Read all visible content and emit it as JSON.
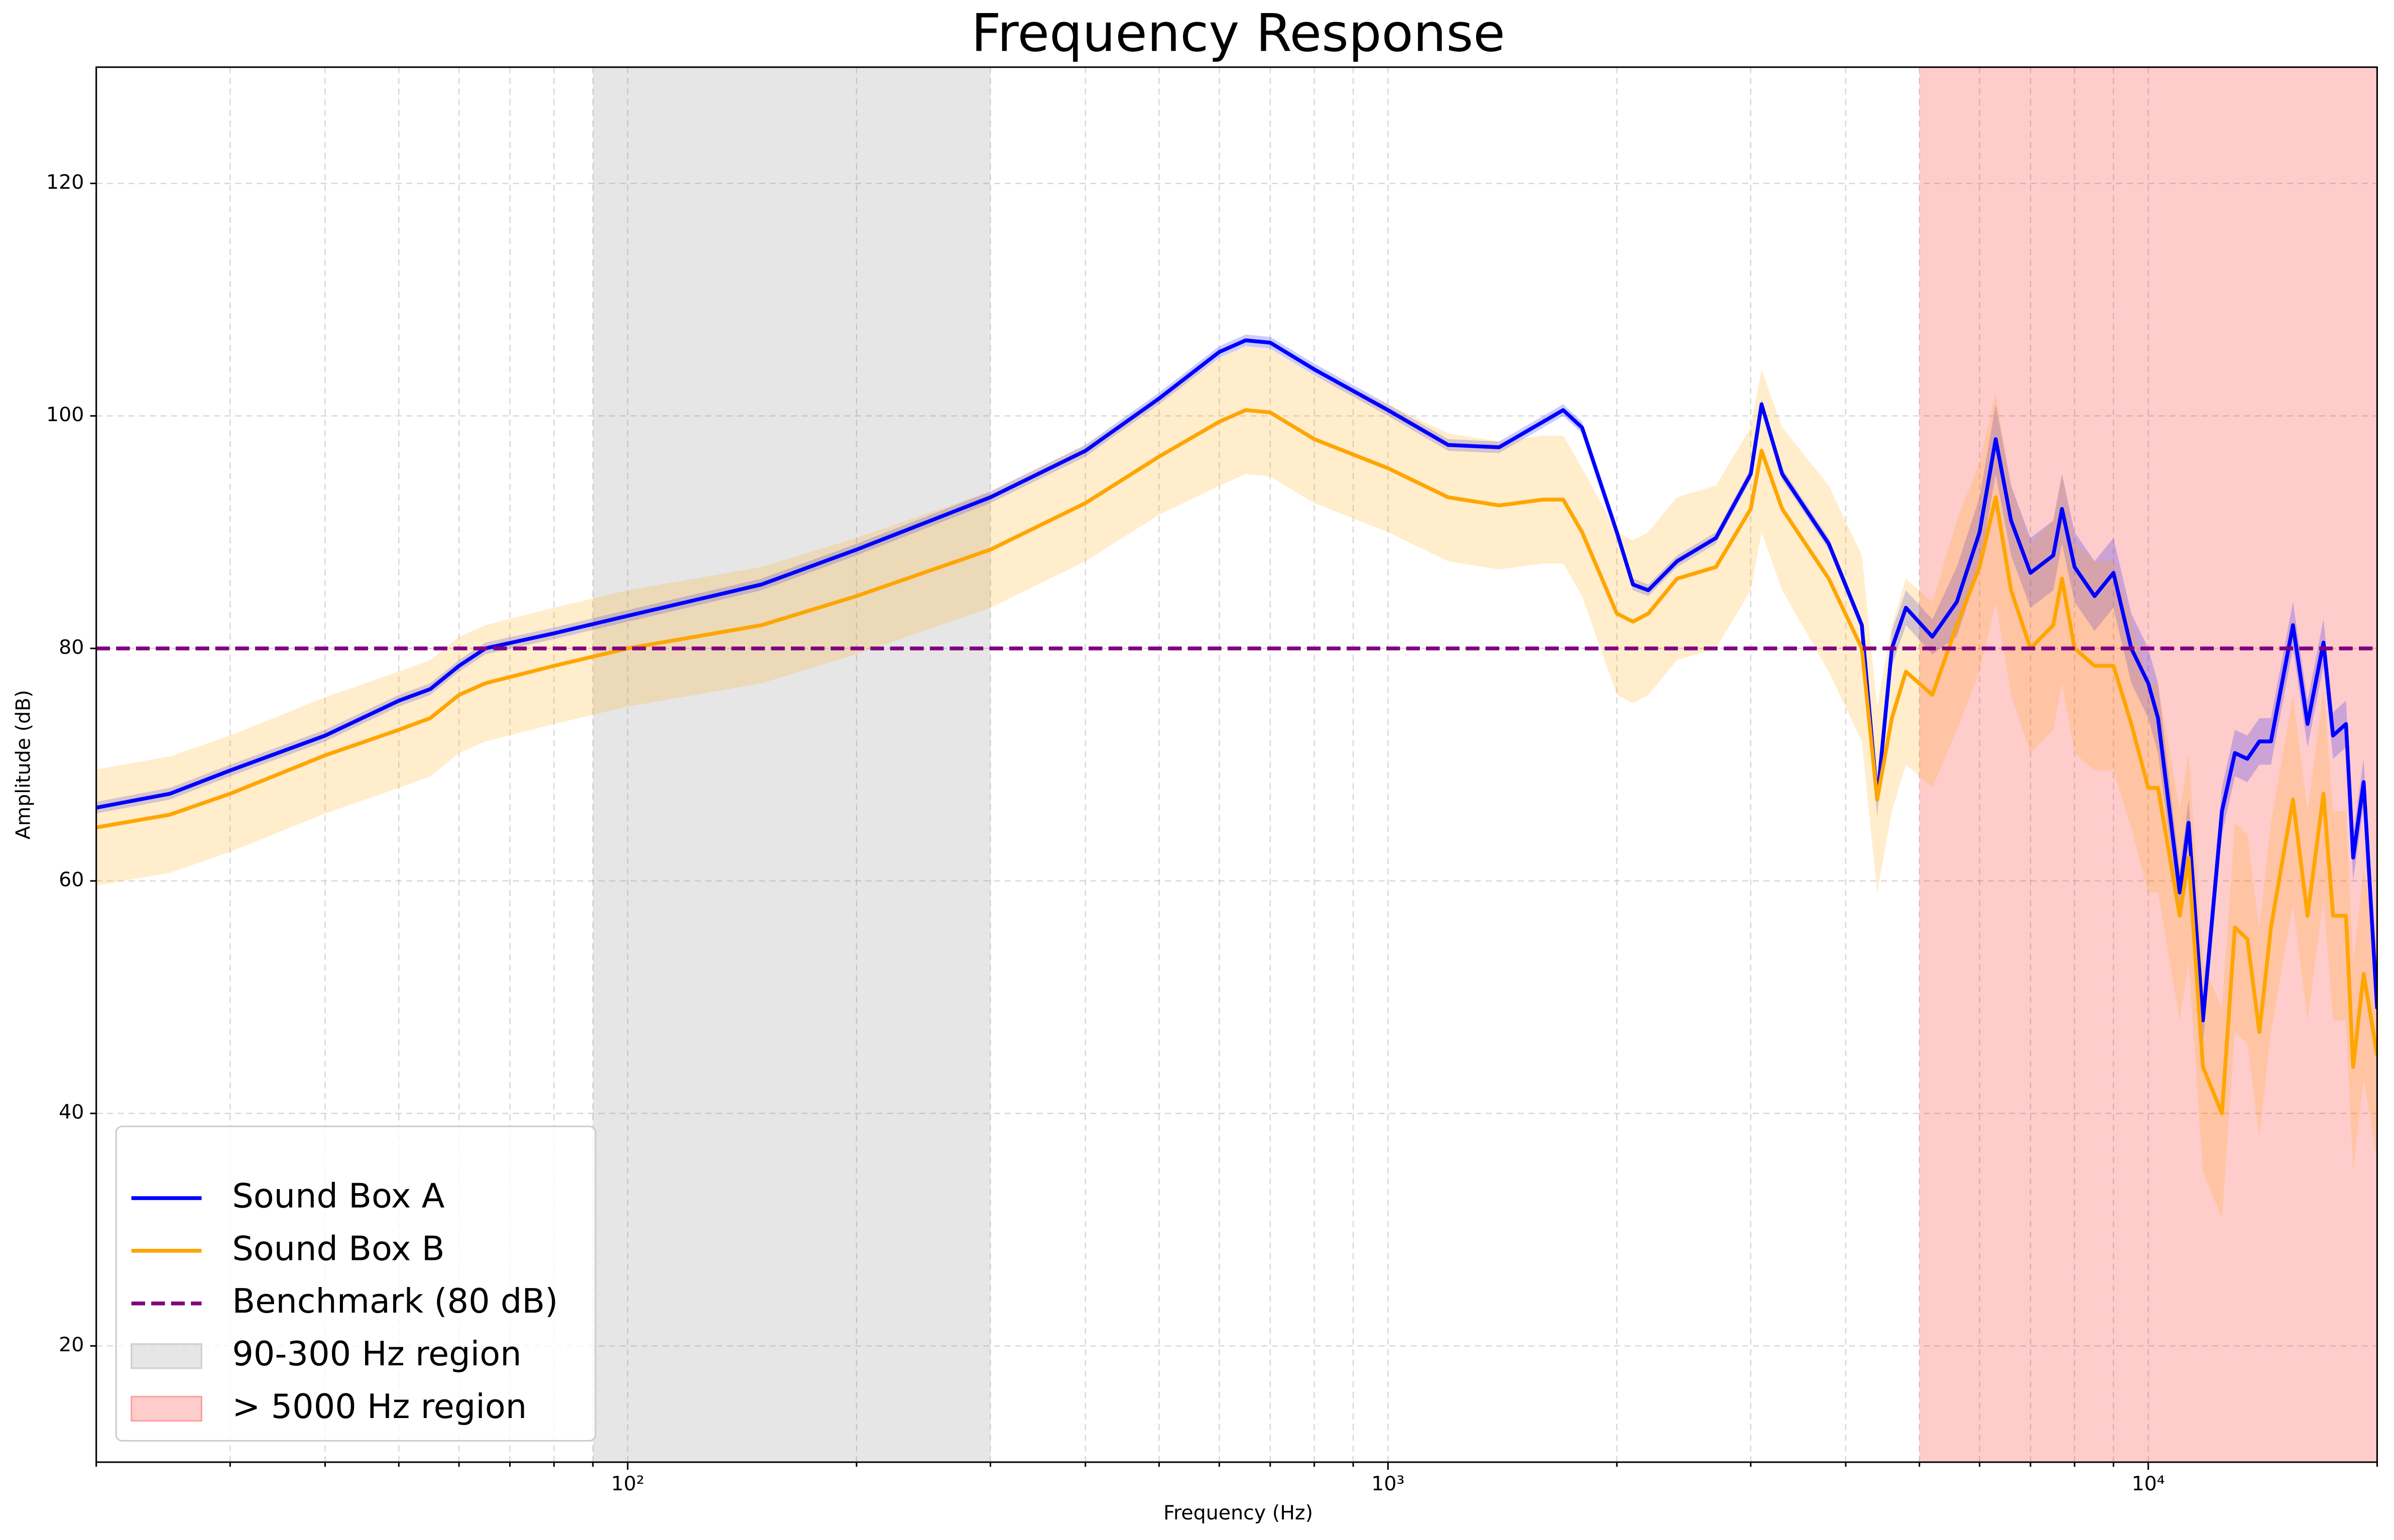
{
  "chart_data": {
    "type": "line",
    "title": "Frequency Response",
    "xlabel": "Frequency (Hz)",
    "ylabel": "Amplitude (dB)",
    "xscale": "log",
    "grid": true,
    "legend": "lower left",
    "xlim": [
      20,
      20000
    ],
    "ylim": [
      10,
      130
    ],
    "xticks": [
      {
        "value": 100,
        "label": "10²"
      },
      {
        "value": 1000,
        "label": "10³"
      },
      {
        "value": 10000,
        "label": "10⁴"
      }
    ],
    "xminorticks": [
      20,
      30,
      40,
      50,
      60,
      70,
      80,
      90,
      200,
      300,
      400,
      500,
      600,
      700,
      800,
      900,
      2000,
      3000,
      4000,
      5000,
      6000,
      7000,
      8000,
      9000,
      20000
    ],
    "yticks": [
      20,
      40,
      60,
      80,
      100,
      120
    ],
    "x": [
      20,
      25,
      30,
      40,
      50,
      55,
      60,
      65,
      80,
      100,
      150,
      200,
      300,
      400,
      500,
      600,
      650,
      700,
      800,
      1000,
      1200,
      1400,
      1600,
      1700,
      1800,
      2000,
      2100,
      2200,
      2400,
      2700,
      3000,
      3100,
      3300,
      3800,
      4200,
      4400,
      4600,
      4800,
      5200,
      5600,
      6000,
      6300,
      6600,
      7000,
      7500,
      7700,
      8000,
      8500,
      9000,
      9500,
      10000,
      10300,
      11000,
      11300,
      11800,
      12500,
      13000,
      13500,
      14000,
      14500,
      15500,
      16200,
      17000,
      17500,
      18200,
      18600,
      19200,
      20000
    ],
    "series": [
      {
        "name": "Sound Box A",
        "color": "#0000ff",
        "band_alpha": 0.2,
        "values": [
          66.3,
          67.5,
          69.5,
          72.5,
          75.5,
          76.5,
          78.5,
          80,
          81.3,
          82.8,
          85.5,
          88.5,
          93,
          97,
          101.5,
          105.5,
          106.5,
          106.3,
          104,
          100.5,
          97.5,
          97.3,
          99.5,
          100.5,
          99,
          90,
          85.5,
          85,
          87.5,
          89.5,
          95,
          101,
          95,
          89,
          82,
          67,
          80,
          83.5,
          81,
          84,
          90,
          98,
          91,
          86.5,
          88,
          92,
          87,
          84.5,
          86.5,
          80,
          77,
          74,
          59,
          65,
          48,
          66,
          71,
          70.5,
          72,
          72,
          82,
          73.5,
          80.5,
          72.5,
          73.5,
          62,
          68.5,
          49
        ],
        "errors": [
          0.5,
          0.5,
          0.5,
          0.5,
          0.5,
          0.5,
          0.5,
          0.5,
          0.5,
          0.5,
          0.5,
          0.5,
          0.5,
          0.5,
          0.5,
          0.5,
          0.5,
          0.5,
          0.5,
          0.5,
          0.5,
          0.5,
          0.5,
          0.5,
          0.5,
          0.5,
          0.5,
          0.5,
          0.5,
          0.5,
          0.5,
          0.5,
          0.5,
          0.5,
          0.5,
          1.5,
          1.5,
          1.5,
          1.5,
          3,
          3,
          3,
          3,
          3,
          3,
          3,
          3,
          3,
          3,
          3,
          3,
          3,
          2,
          2,
          2,
          2,
          2,
          2,
          2,
          2,
          2,
          2,
          2,
          2,
          2,
          2,
          2,
          2
        ]
      },
      {
        "name": "Sound Box B",
        "color": "#ffa500",
        "band_alpha": 0.2,
        "values": [
          64.6,
          65.7,
          67.5,
          70.8,
          73,
          74,
          76,
          77,
          78.5,
          80,
          82,
          84.5,
          88.5,
          92.5,
          96.5,
          99.5,
          100.5,
          100.3,
          98,
          95.5,
          93,
          92.3,
          92.8,
          92.8,
          90,
          83,
          82.3,
          83,
          86,
          87,
          92,
          97,
          92,
          86,
          80,
          67,
          74,
          78,
          76,
          82,
          87,
          93,
          85,
          80,
          82,
          86,
          80,
          78.5,
          78.5,
          73.5,
          68,
          68,
          57,
          62,
          44,
          40,
          56,
          55,
          47,
          56,
          67,
          57,
          67.5,
          57,
          57,
          44,
          52,
          45
        ],
        "errors": [
          5,
          5,
          5,
          5,
          5,
          5,
          5,
          5,
          5,
          5,
          5,
          5,
          5,
          5,
          5,
          5.5,
          5.5,
          5.5,
          5.5,
          5.5,
          5.5,
          5.5,
          5.5,
          5.5,
          5.5,
          7,
          7,
          7,
          7,
          7,
          7,
          7,
          7,
          8,
          8,
          8,
          8,
          8,
          8,
          9,
          9,
          9,
          9,
          9,
          9,
          9,
          9,
          9,
          9,
          9,
          9,
          9,
          9,
          9,
          9,
          9,
          9,
          9,
          9,
          9,
          9,
          9,
          9,
          9,
          9,
          9,
          9,
          9
        ]
      }
    ],
    "hlines": [
      {
        "name": "Benchmark (80 dB)",
        "y": 80,
        "color": "#800080"
      }
    ],
    "spans": [
      {
        "name": "90-300 Hz region",
        "range": [
          90,
          300
        ],
        "color": "#808080",
        "alpha": 0.2
      },
      {
        "name": "> 5000 Hz region",
        "range": [
          5000,
          20000
        ],
        "color": "#ff0000",
        "alpha": 0.2
      }
    ]
  }
}
